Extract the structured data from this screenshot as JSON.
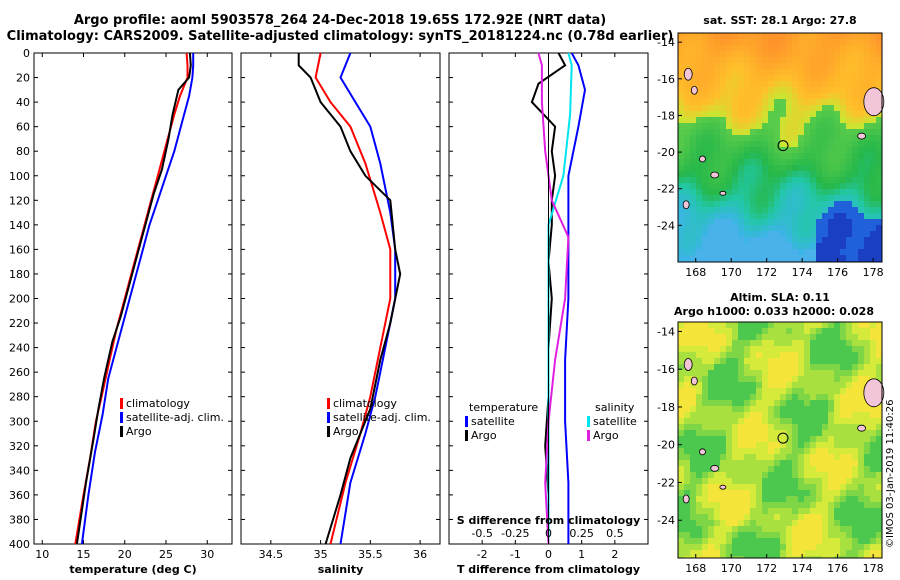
{
  "titles": {
    "line1": "Argo profile: aoml 5903578_264 24-Dec-2018 19.65S 172.92E (NRT data)",
    "line2": "Climatology: CARS2009. Satellite-adjusted climatology: synTS_20181224.nc (0.78d earlier)"
  },
  "colors": {
    "climatology": "#ff0000",
    "satellite": "#0000ff",
    "argo": "#000000",
    "sal_sat": "#00e5ee",
    "sal_argo": "#e020e0"
  },
  "chart_data": [
    {
      "type": "line",
      "id": "temperature",
      "xlabel": "temperature (deg C)",
      "xlim": [
        9,
        33
      ],
      "ylim": [
        400,
        0
      ],
      "xticks": [
        "10",
        "15",
        "20",
        "25",
        "30"
      ],
      "xtick_values": [
        10,
        15,
        20,
        25,
        30
      ],
      "yticks": [
        "0",
        "20",
        "40",
        "60",
        "80",
        "100",
        "120",
        "140",
        "160",
        "180",
        "200",
        "220",
        "240",
        "260",
        "280",
        "300",
        "320",
        "340",
        "360",
        "380",
        "400"
      ],
      "legend": [
        "climatology",
        "satellite-adj. clim.",
        "Argo"
      ],
      "series": [
        {
          "name": "climatology",
          "color": "#ff0000",
          "points": [
            [
              27.5,
              0
            ],
            [
              27.6,
              10
            ],
            [
              27.6,
              20
            ],
            [
              26.7,
              35
            ],
            [
              26.0,
              50
            ],
            [
              25.0,
              75
            ],
            [
              24.0,
              100
            ],
            [
              23.0,
              125
            ],
            [
              22.0,
              150
            ],
            [
              21.0,
              175
            ],
            [
              20.0,
              200
            ],
            [
              19.0,
              225
            ],
            [
              18.0,
              255
            ],
            [
              17.2,
              280
            ],
            [
              16.5,
              300
            ],
            [
              15.8,
              330
            ],
            [
              15.0,
              360
            ],
            [
              14.0,
              400
            ]
          ]
        },
        {
          "name": "satellite-adj. clim.",
          "color": "#0000ff",
          "points": [
            [
              28.3,
              0
            ],
            [
              28.3,
              10
            ],
            [
              28.2,
              20
            ],
            [
              27.8,
              35
            ],
            [
              27.0,
              55
            ],
            [
              26.0,
              80
            ],
            [
              25.0,
              100
            ],
            [
              24.0,
              120
            ],
            [
              23.0,
              140
            ],
            [
              22.0,
              165
            ],
            [
              21.0,
              190
            ],
            [
              20.0,
              215
            ],
            [
              19.0,
              240
            ],
            [
              18.0,
              265
            ],
            [
              17.3,
              295
            ],
            [
              16.4,
              325
            ],
            [
              15.6,
              360
            ],
            [
              14.8,
              400
            ]
          ]
        },
        {
          "name": "Argo",
          "color": "#000000",
          "points": [
            [
              27.9,
              0
            ],
            [
              28.0,
              10
            ],
            [
              27.8,
              20
            ],
            [
              26.5,
              30
            ],
            [
              25.8,
              50
            ],
            [
              25.3,
              70
            ],
            [
              24.5,
              95
            ],
            [
              23.5,
              115
            ],
            [
              22.5,
              140
            ],
            [
              21.5,
              165
            ],
            [
              20.5,
              190
            ],
            [
              19.5,
              215
            ],
            [
              18.5,
              235
            ],
            [
              17.5,
              265
            ],
            [
              16.8,
              290
            ],
            [
              16.2,
              315
            ],
            [
              15.3,
              350
            ],
            [
              14.2,
              400
            ]
          ]
        }
      ]
    },
    {
      "type": "line",
      "id": "salinity",
      "xlabel": "salinity",
      "xlim": [
        34.2,
        36.2
      ],
      "ylim": [
        400,
        0
      ],
      "xticks": [
        "34.5",
        "35",
        "35.5",
        "36"
      ],
      "xtick_values": [
        34.5,
        35,
        35.5,
        36
      ],
      "legend": [
        "climatology",
        "satellite-adj. clim.",
        "Argo"
      ],
      "series": [
        {
          "name": "climatology",
          "color": "#ff0000",
          "points": [
            [
              35.0,
              0
            ],
            [
              34.95,
              20
            ],
            [
              35.1,
              40
            ],
            [
              35.3,
              60
            ],
            [
              35.45,
              90
            ],
            [
              35.6,
              130
            ],
            [
              35.7,
              160
            ],
            [
              35.7,
              200
            ],
            [
              35.6,
              240
            ],
            [
              35.5,
              280
            ],
            [
              35.4,
              310
            ],
            [
              35.25,
              350
            ],
            [
              35.1,
              400
            ]
          ]
        },
        {
          "name": "satellite-adj. clim.",
          "color": "#0000ff",
          "points": [
            [
              35.3,
              0
            ],
            [
              35.2,
              20
            ],
            [
              35.35,
              40
            ],
            [
              35.5,
              60
            ],
            [
              35.6,
              90
            ],
            [
              35.7,
              130
            ],
            [
              35.75,
              160
            ],
            [
              35.75,
              200
            ],
            [
              35.65,
              240
            ],
            [
              35.55,
              280
            ],
            [
              35.45,
              310
            ],
            [
              35.3,
              350
            ],
            [
              35.2,
              400
            ]
          ]
        },
        {
          "name": "Argo",
          "color": "#000000",
          "points": [
            [
              34.78,
              0
            ],
            [
              34.78,
              10
            ],
            [
              34.9,
              20
            ],
            [
              35.0,
              40
            ],
            [
              35.2,
              60
            ],
            [
              35.3,
              80
            ],
            [
              35.45,
              100
            ],
            [
              35.7,
              120
            ],
            [
              35.75,
              160
            ],
            [
              35.8,
              180
            ],
            [
              35.7,
              220
            ],
            [
              35.6,
              250
            ],
            [
              35.5,
              290
            ],
            [
              35.3,
              330
            ],
            [
              35.2,
              360
            ],
            [
              35.05,
              400
            ]
          ]
        }
      ]
    },
    {
      "type": "line",
      "id": "difference",
      "xlabel": "T difference from climatology",
      "xlabel2": "S difference from climatology",
      "xlim": [
        -3,
        3
      ],
      "ylim": [
        400,
        0
      ],
      "xticks": [
        "-2",
        "-1",
        "0",
        "1",
        "2"
      ],
      "xtick_values": [
        -2,
        -1,
        0,
        1,
        2
      ],
      "xticks2": [
        "-0.5",
        "-0.25",
        "0",
        "0.25",
        "0.5"
      ],
      "xtick2_values": [
        -2,
        -1,
        0,
        1,
        2
      ],
      "legend_left_title": "temperature",
      "legend_right_title": "salinity",
      "legend_left": [
        "satellite",
        "Argo"
      ],
      "legend_right": [
        "satellite",
        "Argo"
      ],
      "series": [
        {
          "name": "T satellite",
          "color": "#0000ff",
          "points": [
            [
              0.7,
              0
            ],
            [
              0.9,
              10
            ],
            [
              1.1,
              30
            ],
            [
              0.9,
              60
            ],
            [
              0.6,
              100
            ],
            [
              0.6,
              150
            ],
            [
              0.6,
              200
            ],
            [
              0.5,
              250
            ],
            [
              0.5,
              300
            ],
            [
              0.6,
              350
            ],
            [
              0.6,
              400
            ]
          ]
        },
        {
          "name": "T Argo",
          "color": "#000000",
          "points": [
            [
              0.3,
              0
            ],
            [
              0.5,
              10
            ],
            [
              -0.3,
              25
            ],
            [
              -0.5,
              40
            ],
            [
              0.2,
              60
            ],
            [
              0.1,
              80
            ],
            [
              0.2,
              100
            ],
            [
              0.1,
              120
            ],
            [
              0.1,
              140
            ],
            [
              0.0,
              170
            ],
            [
              0.1,
              200
            ],
            [
              0.0,
              240
            ],
            [
              0.0,
              280
            ],
            [
              -0.1,
              320
            ],
            [
              0.0,
              360
            ],
            [
              0.0,
              400
            ]
          ]
        },
        {
          "name": "S satellite",
          "color": "#00e5ee",
          "points": [
            [
              0.6,
              0
            ],
            [
              0.7,
              10
            ],
            [
              0.65,
              50
            ],
            [
              0.45,
              100
            ],
            [
              0.0,
              140
            ],
            [
              0.0,
              200
            ],
            [
              0.0,
              300
            ],
            [
              0.0,
              400
            ]
          ]
        },
        {
          "name": "S Argo",
          "color": "#e020e0",
          "points": [
            [
              -0.3,
              0
            ],
            [
              -0.2,
              10
            ],
            [
              -0.2,
              40
            ],
            [
              -0.1,
              80
            ],
            [
              0.1,
              120
            ],
            [
              0.6,
              150
            ],
            [
              0.5,
              200
            ],
            [
              0.2,
              250
            ],
            [
              0.0,
              300
            ],
            [
              -0.1,
              350
            ],
            [
              0.0,
              400
            ]
          ]
        }
      ]
    },
    {
      "type": "heatmap",
      "id": "sst_map",
      "title": "sat. SST: 28.1 Argo: 27.8",
      "xlim": [
        167,
        178.5
      ],
      "ylim": [
        -26,
        -13.5
      ],
      "xticks": [
        "168",
        "170",
        "172",
        "174",
        "176",
        "178"
      ],
      "xtick_values": [
        168,
        170,
        172,
        174,
        176,
        178
      ],
      "yticks": [
        "-14",
        "-16",
        "-18",
        "-20",
        "-22",
        "-24"
      ],
      "ytick_values": [
        -14,
        -16,
        -18,
        -20,
        -22,
        -24
      ],
      "marker": {
        "lon": 172.92,
        "lat": -19.65
      }
    },
    {
      "type": "heatmap",
      "id": "sla_map",
      "title": "Altim. SLA: 0.11",
      "subtitle": "Argo h1000: 0.033 h2000: 0.028",
      "xlim": [
        167,
        178.5
      ],
      "ylim": [
        -26,
        -13.5
      ],
      "xticks": [
        "168",
        "170",
        "172",
        "174",
        "176",
        "178"
      ],
      "xtick_values": [
        168,
        170,
        172,
        174,
        176,
        178
      ],
      "yticks": [
        "-14",
        "-16",
        "-18",
        "-20",
        "-22",
        "-24"
      ],
      "ytick_values": [
        -14,
        -16,
        -18,
        -20,
        -22,
        -24
      ],
      "marker": {
        "lon": 172.92,
        "lat": -19.65
      }
    }
  ],
  "watermark": "©IMOS 03-Jan-2019 11:40:26"
}
